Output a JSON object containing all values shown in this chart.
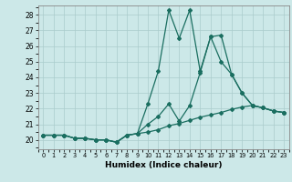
{
  "xlabel": "Humidex (Indice chaleur)",
  "background_color": "#cce8e8",
  "grid_color": "#aacccc",
  "line_color": "#1a6e60",
  "xlim": [
    -0.5,
    23.5
  ],
  "ylim": [
    19.4,
    28.6
  ],
  "xticks": [
    0,
    1,
    2,
    3,
    4,
    5,
    6,
    7,
    8,
    9,
    10,
    11,
    12,
    13,
    14,
    15,
    16,
    17,
    18,
    19,
    20,
    21,
    22,
    23
  ],
  "yticks": [
    20,
    21,
    22,
    23,
    24,
    25,
    26,
    27,
    28
  ],
  "line1_x": [
    0,
    1,
    2,
    3,
    4,
    5,
    6,
    7,
    8,
    9,
    10,
    11,
    12,
    13,
    14,
    15,
    16,
    17,
    18,
    19,
    20,
    21,
    22,
    23
  ],
  "line1_y": [
    20.3,
    20.3,
    20.3,
    20.1,
    20.1,
    20.0,
    20.0,
    19.85,
    20.3,
    20.4,
    20.5,
    20.65,
    20.9,
    21.05,
    21.25,
    21.45,
    21.6,
    21.75,
    21.95,
    22.1,
    22.2,
    22.05,
    21.85,
    21.75
  ],
  "line2_x": [
    0,
    1,
    2,
    3,
    4,
    5,
    6,
    7,
    8,
    9,
    10,
    11,
    12,
    13,
    14,
    15,
    16,
    17,
    18,
    19,
    20,
    21,
    22,
    23
  ],
  "line2_y": [
    20.3,
    20.3,
    20.3,
    20.1,
    20.1,
    20.0,
    20.0,
    19.85,
    20.3,
    20.4,
    21.0,
    21.5,
    22.3,
    21.2,
    22.2,
    24.3,
    26.6,
    26.7,
    24.2,
    23.0,
    22.2,
    22.05,
    21.85,
    21.75
  ],
  "line3_x": [
    0,
    1,
    2,
    3,
    4,
    5,
    6,
    7,
    8,
    9,
    10,
    11,
    12,
    13,
    14,
    15,
    16,
    17,
    18,
    19,
    20,
    21,
    22,
    23
  ],
  "line3_y": [
    20.3,
    20.3,
    20.3,
    20.1,
    20.1,
    20.0,
    20.0,
    19.85,
    20.3,
    20.4,
    22.3,
    24.4,
    28.3,
    26.5,
    28.3,
    24.4,
    26.6,
    25.0,
    24.2,
    23.0,
    22.2,
    22.05,
    21.85,
    21.75
  ]
}
